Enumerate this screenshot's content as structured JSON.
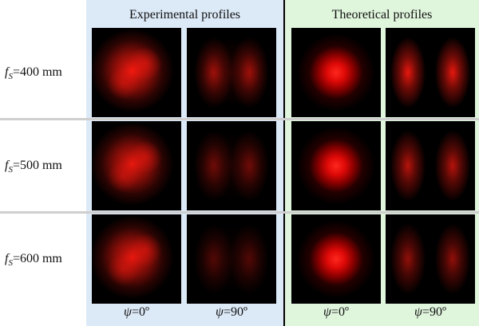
{
  "headers": {
    "experimental": "Experimental profiles",
    "theoretical": "Theoretical profiles"
  },
  "rows": [
    {
      "sym": "f",
      "sub": "S",
      "rest": "=400 mm",
      "exp0": 1.0,
      "exp90": 0.8,
      "theo90": 0.95
    },
    {
      "sym": "f",
      "sub": "S",
      "rest": "=500 mm",
      "exp0": 0.95,
      "exp90": 0.55,
      "theo90": 0.75
    },
    {
      "sym": "f",
      "sub": "S",
      "rest": "=600 mm",
      "exp0": 0.95,
      "exp90": 0.4,
      "theo90": 0.6
    }
  ],
  "columns": [
    {
      "sym": "ψ",
      "rest": "=0º"
    },
    {
      "sym": "ψ",
      "rest": "=90º"
    },
    {
      "sym": "ψ",
      "rest": "=0º"
    },
    {
      "sym": "ψ",
      "rest": "=90º"
    }
  ],
  "colors": {
    "experimental_bg": "#dce9f7",
    "theoretical_bg": "#dff5dc",
    "beam": "#ff1a10"
  }
}
